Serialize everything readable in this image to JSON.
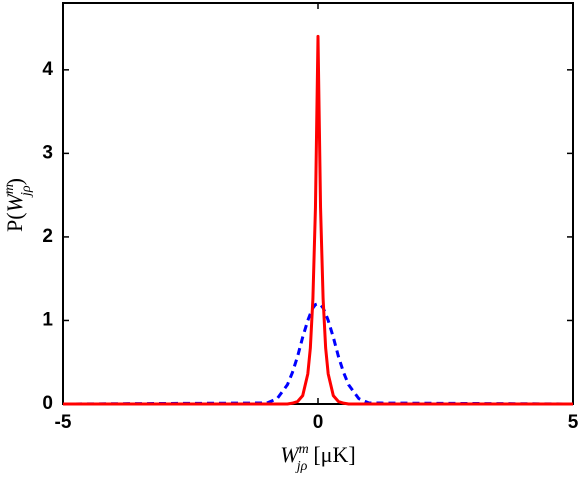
{
  "chart_data": {
    "type": "line",
    "x_label": {
      "base": "W",
      "superscript": "m",
      "subscript": "jρ",
      "unit": "[μK]"
    },
    "y_label": {
      "prefix": "P(",
      "base": "W",
      "superscript": "m",
      "subscript": "jρ",
      "suffix": ")"
    },
    "x": [
      -5,
      -1,
      -0.8,
      -0.6,
      -0.5,
      -0.4,
      -0.3,
      -0.2,
      -0.15,
      -0.1,
      -0.05,
      0,
      0.05,
      0.1,
      0.15,
      0.2,
      0.3,
      0.4,
      0.5,
      0.6,
      0.8,
      1,
      5
    ],
    "series": [
      {
        "color": "#0000ff",
        "dash": true,
        "values": [
          0,
          0.012,
          0.064,
          0.23,
          0.38,
          0.57,
          0.8,
          1.0,
          1.08,
          1.15,
          1.19,
          1.2,
          1.19,
          1.15,
          1.08,
          1.0,
          0.8,
          0.57,
          0.38,
          0.23,
          0.064,
          0.012,
          0
        ]
      },
      {
        "color": "#ff0000",
        "dash": false,
        "values": [
          0,
          0,
          0,
          0,
          0.01,
          0.03,
          0.1,
          0.36,
          0.67,
          1.26,
          2.35,
          4.4,
          2.35,
          1.26,
          0.67,
          0.36,
          0.1,
          0.03,
          0.01,
          0,
          0,
          0,
          0
        ]
      }
    ],
    "xlim": [
      -5,
      5
    ],
    "ylim": [
      0,
      4.8
    ],
    "xticks": [
      -5,
      0,
      5
    ],
    "yticks": [
      0,
      1,
      2,
      3,
      4
    ],
    "grid": false
  }
}
